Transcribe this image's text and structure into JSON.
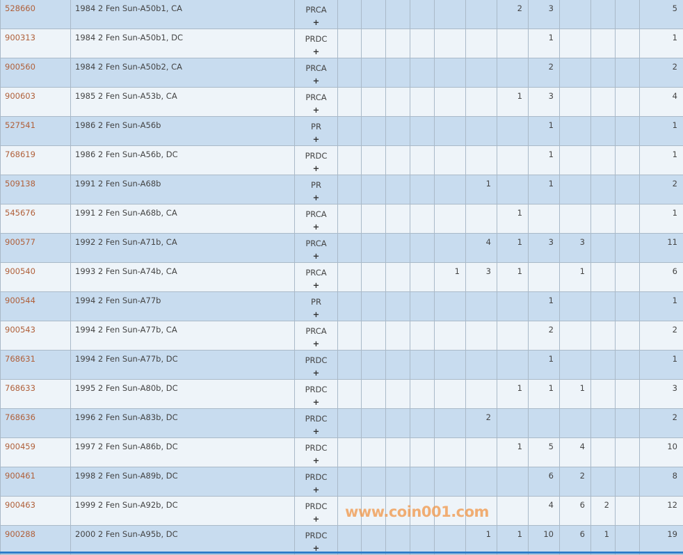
{
  "watermark": "www.coin001.com",
  "colors": {
    "row_odd": "#c8dcef",
    "row_even": "#eef4f9",
    "link": "#b0603a",
    "bottom_bar": "#2f7dc9"
  },
  "rows": [
    {
      "id": "528660",
      "desc": "1984 2 Fen Sun-A50b1, CA",
      "des": "PRCA",
      "plus": "+",
      "counts": [
        "",
        "",
        "",
        "",
        "",
        "",
        "2",
        "3",
        "",
        "",
        "",
        ""
      ],
      "total": "5"
    },
    {
      "id": "900313",
      "desc": "1984 2 Fen Sun-A50b1, DC",
      "des": "PRDC",
      "plus": "+",
      "counts": [
        "",
        "",
        "",
        "",
        "",
        "",
        "",
        "1",
        "",
        "",
        "",
        ""
      ],
      "total": "1"
    },
    {
      "id": "900560",
      "desc": "1984 2 Fen Sun-A50b2, CA",
      "des": "PRCA",
      "plus": "+",
      "counts": [
        "",
        "",
        "",
        "",
        "",
        "",
        "",
        "2",
        "",
        "",
        "",
        ""
      ],
      "total": "2"
    },
    {
      "id": "900603",
      "desc": "1985 2 Fen Sun-A53b, CA",
      "des": "PRCA",
      "plus": "+",
      "counts": [
        "",
        "",
        "",
        "",
        "",
        "",
        "1",
        "3",
        "",
        "",
        "",
        ""
      ],
      "total": "4"
    },
    {
      "id": "527541",
      "desc": "1986 2 Fen Sun-A56b",
      "des": "PR",
      "plus": "+",
      "counts": [
        "",
        "",
        "",
        "",
        "",
        "",
        "",
        "1",
        "",
        "",
        "",
        ""
      ],
      "total": "1"
    },
    {
      "id": "768619",
      "desc": "1986 2 Fen Sun-A56b, DC",
      "des": "PRDC",
      "plus": "+",
      "counts": [
        "",
        "",
        "",
        "",
        "",
        "",
        "",
        "1",
        "",
        "",
        "",
        ""
      ],
      "total": "1"
    },
    {
      "id": "509138",
      "desc": "1991 2 Fen Sun-A68b",
      "des": "PR",
      "plus": "+",
      "counts": [
        "",
        "",
        "",
        "",
        "",
        "1",
        "",
        "1",
        "",
        "",
        "",
        ""
      ],
      "total": "2"
    },
    {
      "id": "545676",
      "desc": "1991 2 Fen Sun-A68b, CA",
      "des": "PRCA",
      "plus": "+",
      "counts": [
        "",
        "",
        "",
        "",
        "",
        "",
        "1",
        "",
        "",
        "",
        "",
        ""
      ],
      "total": "1"
    },
    {
      "id": "900577",
      "desc": "1992 2 Fen Sun-A71b, CA",
      "des": "PRCA",
      "plus": "+",
      "counts": [
        "",
        "",
        "",
        "",
        "",
        "4",
        "1",
        "3",
        "3",
        "",
        "",
        ""
      ],
      "total": "11"
    },
    {
      "id": "900540",
      "desc": "1993 2 Fen Sun-A74b, CA",
      "des": "PRCA",
      "plus": "+",
      "counts": [
        "",
        "",
        "",
        "",
        "1",
        "3",
        "1",
        "",
        "1",
        "",
        "",
        ""
      ],
      "total": "6"
    },
    {
      "id": "900544",
      "desc": "1994 2 Fen Sun-A77b",
      "des": "PR",
      "plus": "+",
      "counts": [
        "",
        "",
        "",
        "",
        "",
        "",
        "",
        "1",
        "",
        "",
        "",
        ""
      ],
      "total": "1"
    },
    {
      "id": "900543",
      "desc": "1994 2 Fen Sun-A77b, CA",
      "des": "PRCA",
      "plus": "+",
      "counts": [
        "",
        "",
        "",
        "",
        "",
        "",
        "",
        "2",
        "",
        "",
        "",
        ""
      ],
      "total": "2"
    },
    {
      "id": "768631",
      "desc": "1994 2 Fen Sun-A77b, DC",
      "des": "PRDC",
      "plus": "+",
      "counts": [
        "",
        "",
        "",
        "",
        "",
        "",
        "",
        "1",
        "",
        "",
        "",
        ""
      ],
      "total": "1"
    },
    {
      "id": "768633",
      "desc": "1995 2 Fen Sun-A80b, DC",
      "des": "PRDC",
      "plus": "+",
      "counts": [
        "",
        "",
        "",
        "",
        "",
        "",
        "1",
        "1",
        "1",
        "",
        "",
        ""
      ],
      "total": "3"
    },
    {
      "id": "768636",
      "desc": "1996 2 Fen Sun-A83b, DC",
      "des": "PRDC",
      "plus": "+",
      "counts": [
        "",
        "",
        "",
        "",
        "",
        "2",
        "",
        "",
        "",
        "",
        "",
        ""
      ],
      "total": "2"
    },
    {
      "id": "900459",
      "desc": "1997 2 Fen Sun-A86b, DC",
      "des": "PRDC",
      "plus": "+",
      "counts": [
        "",
        "",
        "",
        "",
        "",
        "",
        "1",
        "5",
        "4",
        "",
        "",
        ""
      ],
      "total": "10"
    },
    {
      "id": "900461",
      "desc": "1998 2 Fen Sun-A89b, DC",
      "des": "PRDC",
      "plus": "+",
      "counts": [
        "",
        "",
        "",
        "",
        "",
        "",
        "",
        "6",
        "2",
        "",
        "",
        ""
      ],
      "total": "8"
    },
    {
      "id": "900463",
      "desc": "1999 2 Fen Sun-A92b, DC",
      "des": "PRDC",
      "plus": "+",
      "counts": [
        "",
        "",
        "",
        "",
        "",
        "",
        "",
        "4",
        "6",
        "2",
        "",
        ""
      ],
      "total": "12"
    },
    {
      "id": "900288",
      "desc": "2000 2 Fen Sun-A95b, DC",
      "des": "PRDC",
      "plus": "+",
      "counts": [
        "",
        "",
        "",
        "",
        "",
        "1",
        "1",
        "10",
        "6",
        "1",
        "",
        ""
      ],
      "total": "19"
    }
  ]
}
